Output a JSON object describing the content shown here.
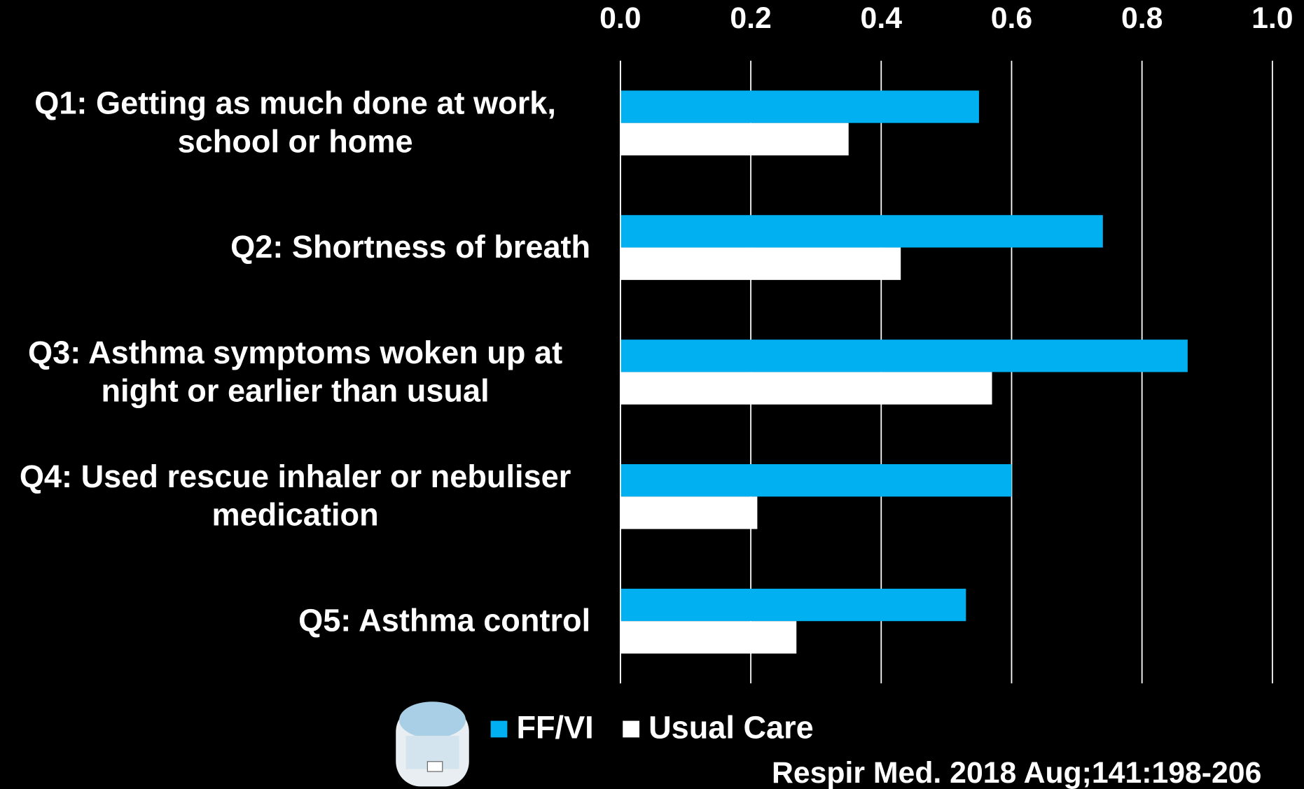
{
  "chart_data": {
    "type": "barh",
    "categories": [
      "Q1: Getting as much done at work, school or home",
      "Q2: Shortness of breath",
      "Q3: Asthma symptoms woken up at night or earlier than usual",
      "Q4: Used rescue inhaler or nebuliser medication",
      "Q5: Asthma control"
    ],
    "series": [
      {
        "name": "FF/VI",
        "color": "#00b0f0",
        "values": [
          0.55,
          0.74,
          0.87,
          0.6,
          0.53
        ]
      },
      {
        "name": "Usual Care",
        "color": "#ffffff",
        "values": [
          0.35,
          0.43,
          0.57,
          0.21,
          0.27
        ]
      }
    ],
    "xlim": [
      0,
      1
    ],
    "xticks": [
      {
        "value": 0,
        "label": "0.0"
      },
      {
        "value": 0.2,
        "label": "0.2"
      },
      {
        "value": 0.4,
        "label": "0.4"
      },
      {
        "value": 0.6,
        "label": "0.6"
      },
      {
        "value": 0.8,
        "label": "0.8"
      },
      {
        "value": 1,
        "label": "1.0"
      }
    ],
    "grid": true,
    "annotation": "Respir Med. 2018 Aug;141:198-206",
    "annotation_color": "#92d050"
  }
}
